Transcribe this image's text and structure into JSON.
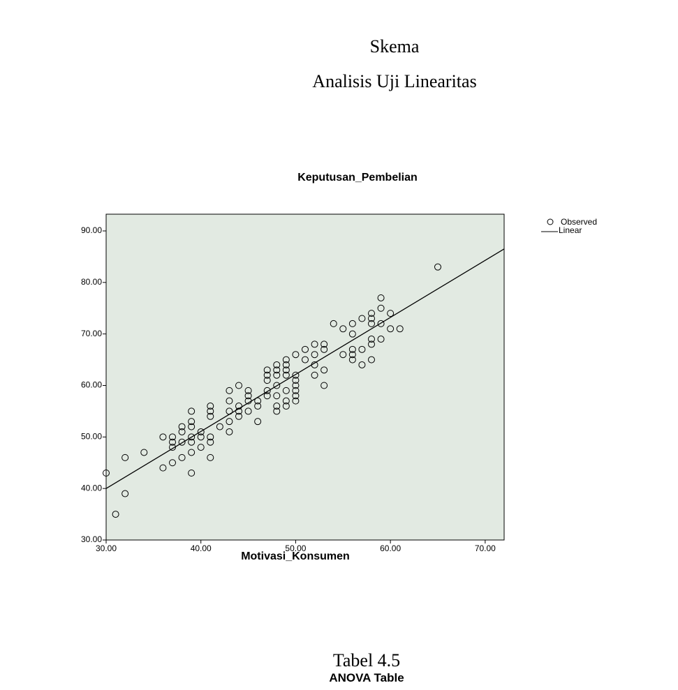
{
  "header": {
    "title": "Skema",
    "subtitle": "Analisis Uji Linearitas"
  },
  "chart_data": {
    "type": "scatter",
    "title": "Keputusan_Pembelian",
    "x_label": "Motivasi_Konsumen",
    "xlim": [
      30,
      72
    ],
    "ylim": [
      30,
      93.25
    ],
    "xticks": [
      {
        "value": 30,
        "label": "30.00"
      },
      {
        "value": 40,
        "label": "40.00"
      },
      {
        "value": 50,
        "label": "50.00"
      },
      {
        "value": 60,
        "label": "60.00"
      },
      {
        "value": 70,
        "label": "70.00"
      }
    ],
    "yticks": [
      {
        "value": 30,
        "label": "30.00"
      },
      {
        "value": 40,
        "label": "40.00"
      },
      {
        "value": 50,
        "label": "50.00"
      },
      {
        "value": 60,
        "label": "60.00"
      },
      {
        "value": 70,
        "label": "70.00"
      },
      {
        "value": 80,
        "label": "80.00"
      },
      {
        "value": 90,
        "label": "90.00"
      }
    ],
    "legend": "top-right-outside",
    "series": [
      {
        "name": "Observed",
        "type": "scatter",
        "color": "#000000",
        "x": [
          30,
          31,
          32,
          32,
          34,
          36,
          36,
          37,
          37,
          37,
          37,
          38,
          38,
          38,
          38,
          39,
          39,
          39,
          39,
          39,
          39,
          39,
          40,
          40,
          40,
          41,
          41,
          41,
          41,
          41,
          41,
          42,
          43,
          43,
          43,
          43,
          43,
          44,
          44,
          44,
          44,
          45,
          45,
          45,
          45,
          46,
          46,
          46,
          47,
          47,
          47,
          47,
          47,
          48,
          48,
          48,
          48,
          48,
          48,
          48,
          49,
          49,
          49,
          49,
          49,
          49,
          49,
          50,
          50,
          50,
          50,
          50,
          50,
          50,
          51,
          51,
          52,
          52,
          52,
          52,
          53,
          53,
          53,
          53,
          54,
          55,
          55,
          56,
          56,
          56,
          56,
          56,
          57,
          57,
          57,
          58,
          58,
          58,
          58,
          58,
          58,
          59,
          59,
          59,
          59,
          60,
          60,
          61,
          65
        ],
        "values": [
          43,
          35,
          46,
          39,
          47,
          50,
          44,
          50,
          49,
          48,
          45,
          52,
          51,
          49,
          46,
          55,
          53,
          52,
          50,
          49,
          47,
          43,
          51,
          50,
          48,
          56,
          55,
          54,
          50,
          49,
          46,
          52,
          59,
          57,
          55,
          53,
          51,
          60,
          56,
          55,
          54,
          59,
          58,
          57,
          55,
          57,
          56,
          53,
          63,
          62,
          61,
          59,
          58,
          64,
          63,
          62,
          60,
          58,
          56,
          55,
          65,
          64,
          63,
          62,
          59,
          57,
          56,
          66,
          62,
          61,
          60,
          59,
          58,
          57,
          67,
          65,
          68,
          66,
          64,
          62,
          68,
          67,
          63,
          60,
          72,
          71,
          66,
          72,
          70,
          67,
          66,
          65,
          73,
          67,
          64,
          74,
          73,
          72,
          69,
          68,
          65,
          77,
          75,
          72,
          69,
          74,
          71,
          71,
          83
        ]
      },
      {
        "name": "Linear",
        "type": "line",
        "color": "#000000",
        "x": [
          30,
          72
        ],
        "values": [
          40,
          86.5
        ]
      }
    ]
  },
  "footer": {
    "table_number": "Tabel 4.5",
    "table_title": "ANOVA Table"
  }
}
